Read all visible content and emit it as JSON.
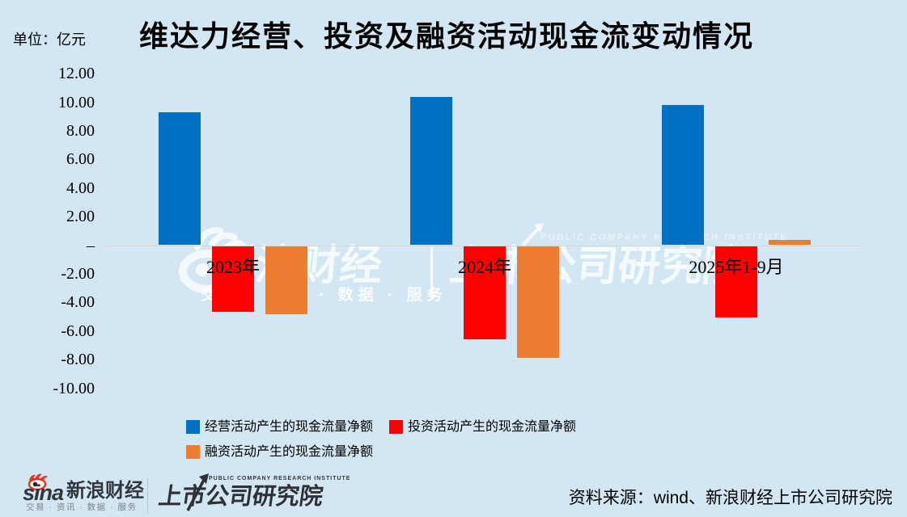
{
  "meta": {
    "unit": "单位：亿元",
    "title": "维达力经营、投资及融资活动现金流变动情况"
  },
  "chart_data": {
    "type": "bar",
    "title": "维达力经营、投资及融资活动现金流变动情况",
    "unit": "亿元",
    "categories": [
      "2023年",
      "2024年",
      "2025年1-9月"
    ],
    "series": [
      {
        "key": "operating",
        "name": "经营活动产生的现金流量净额",
        "color": "#0071c2",
        "values": [
          9.27,
          10.34,
          9.83
        ]
      },
      {
        "key": "investing",
        "name": "投资活动产生的现金流量净额",
        "color": "#fd0000",
        "values": [
          -4.58,
          -6.55,
          -5.01
        ]
      },
      {
        "key": "financing",
        "name": "融资活动产生的现金流量净额",
        "color": "#ed7d31",
        "values": [
          -4.75,
          -7.8,
          0.37
        ]
      }
    ],
    "ylim": [
      -10,
      12
    ],
    "ytick_step": 2,
    "yticks": [
      {
        "v": 12,
        "label": "12.00"
      },
      {
        "v": 10,
        "label": "10.00"
      },
      {
        "v": 8,
        "label": "8.00"
      },
      {
        "v": 6,
        "label": "6.00"
      },
      {
        "v": 4,
        "label": "4.00"
      },
      {
        "v": 2,
        "label": "2.00"
      },
      {
        "v": 0,
        "label": "–"
      },
      {
        "v": -2,
        "label": "-2.00"
      },
      {
        "v": -4,
        "label": "-4.00"
      },
      {
        "v": -6,
        "label": "-6.00"
      },
      {
        "v": -8,
        "label": "-8.00"
      },
      {
        "v": -10,
        "label": "-10.00"
      }
    ],
    "grid": "zero-baseline-only",
    "legend_position": "bottom"
  },
  "watermark": {
    "brand": "新浪财经",
    "tagline": "交易 · 资讯 · 数据 · 服务",
    "institute": "上市公司研究院",
    "institute_caption": "PUBLIC COMPANY RESEARCH INSTITUTE"
  },
  "footer": {
    "sina_wordmark": "sina",
    "sina_brand": "新浪财经",
    "sina_tagline": "交易 · 资讯 · 数据 · 服务",
    "institute_caption": "PUBLIC COMPANY RESEARCH INSTITUTE",
    "institute_name": "上市公司研究院",
    "source": "资料来源：wind、新浪财经上市公司研究院"
  }
}
